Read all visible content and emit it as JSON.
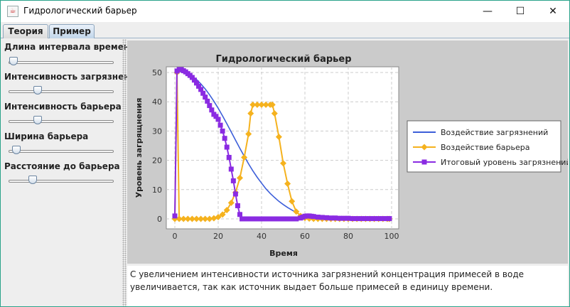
{
  "window": {
    "title": "Гидрологический барьер"
  },
  "tabs": [
    {
      "label": "Теория"
    },
    {
      "label": "Пример"
    }
  ],
  "sliders": [
    {
      "label": "Длина интервала времени",
      "value": 0.0
    },
    {
      "label": "Интенсивность загрязнения",
      "value": 0.25
    },
    {
      "label": "Интенсивность барьера",
      "value": 0.25
    },
    {
      "label": "Ширина барьера",
      "value": 0.03
    },
    {
      "label": "Расстояние до барьера",
      "value": 0.2
    }
  ],
  "description": "С увеличением интенсивности источника загрязнений концентрация примесей в воде увеличивается, так как источник выдает больше примесей в единицу времени.",
  "chart_data": {
    "type": "line",
    "title": "Гидрологический барьер",
    "xlabel": "Время",
    "ylabel": "Уровень загрящнения",
    "xlim": [
      0,
      100
    ],
    "ylim": [
      -2,
      53
    ],
    "xticks": [
      0,
      20,
      40,
      60,
      80,
      100
    ],
    "yticks": [
      0,
      10,
      20,
      30,
      40,
      50
    ],
    "grid": true,
    "legend_position": "right",
    "series": [
      {
        "name": "Воздействие загрязнений",
        "color": "#3d5fd9",
        "marker": "none",
        "x": [
          0,
          1,
          2,
          4,
          6,
          8,
          10,
          12,
          14,
          16,
          18,
          20,
          22,
          24,
          26,
          28,
          30,
          32,
          34,
          36,
          38,
          40,
          42,
          44,
          46,
          48,
          50,
          52,
          54,
          56,
          58,
          60,
          62,
          64,
          70,
          80,
          90,
          99
        ],
        "y": [
          1,
          50,
          50.3,
          50.2,
          49.6,
          48.7,
          47.6,
          46.1,
          44.4,
          42.4,
          40.2,
          37.8,
          35.2,
          32.5,
          29.7,
          26.9,
          24.1,
          21.4,
          18.8,
          16.4,
          14.2,
          12.2,
          10.3,
          8.7,
          7.3,
          6.0,
          4.9,
          3.9,
          3.0,
          2.2,
          1.3,
          0.8,
          0.5,
          0.3,
          0.1,
          0,
          0,
          0
        ]
      },
      {
        "name": "Воздействие барьера",
        "color": "#f5b21e",
        "marker": "diamond",
        "x": [
          0,
          1,
          2,
          4,
          6,
          8,
          10,
          12,
          14,
          16,
          18,
          20,
          22,
          24,
          26,
          28,
          30,
          32,
          34,
          35,
          36,
          38,
          40,
          42,
          44,
          45,
          46,
          48,
          50,
          52,
          54,
          56,
          58,
          60,
          62,
          64,
          66,
          68,
          70,
          72,
          74,
          76,
          78,
          80,
          82,
          84,
          86,
          88,
          90,
          92,
          94,
          96,
          98,
          99
        ],
        "y": [
          0,
          50,
          0,
          0,
          0,
          0,
          0,
          0,
          0,
          0,
          0.2,
          0.6,
          1.5,
          3,
          5.5,
          9,
          14,
          21,
          29,
          36,
          39,
          39,
          39,
          39,
          39,
          39,
          36,
          28,
          19,
          12,
          6,
          2.5,
          1,
          0.3,
          0.1,
          0,
          0,
          0,
          0,
          0,
          0,
          0,
          0,
          0,
          0,
          0,
          0,
          0,
          0,
          0,
          0,
          0,
          0,
          0
        ]
      },
      {
        "name": "Итоговый уровень загрязнений",
        "color": "#8a2be2",
        "marker": "square",
        "x": [
          0,
          1,
          2,
          3,
          4,
          5,
          6,
          7,
          8,
          9,
          10,
          11,
          12,
          13,
          14,
          15,
          16,
          17,
          18,
          19,
          20,
          21,
          22,
          23,
          24,
          25,
          26,
          27,
          28,
          29,
          30,
          31,
          32,
          33,
          34,
          35,
          36,
          37,
          38,
          39,
          40,
          42,
          44,
          46,
          48,
          50,
          52,
          54,
          56,
          58,
          59,
          60,
          61,
          62,
          63,
          64,
          66,
          68,
          70,
          72,
          74,
          76,
          78,
          80,
          82,
          84,
          86,
          88,
          90,
          92,
          94,
          96,
          98,
          99
        ],
        "y": [
          1,
          50.5,
          51,
          51,
          50.6,
          50.2,
          49.6,
          49,
          48.3,
          47.4,
          46.4,
          45.3,
          44.2,
          42.9,
          41.6,
          40.2,
          38.7,
          37.2,
          35.7,
          35,
          34,
          32,
          30,
          27.5,
          24.5,
          21,
          17,
          13,
          8.5,
          4.5,
          1.5,
          0,
          0,
          0,
          0,
          0,
          0,
          0,
          0,
          0,
          0,
          0,
          0,
          0,
          0,
          0,
          0,
          0,
          0,
          0.3,
          0.6,
          0.9,
          1.0,
          1.0,
          0.9,
          0.8,
          0.6,
          0.5,
          0.4,
          0.3,
          0.3,
          0.2,
          0.2,
          0.2,
          0.1,
          0.1,
          0.1,
          0.1,
          0.1,
          0.1,
          0.1,
          0.1,
          0.1,
          0.1
        ]
      }
    ]
  }
}
